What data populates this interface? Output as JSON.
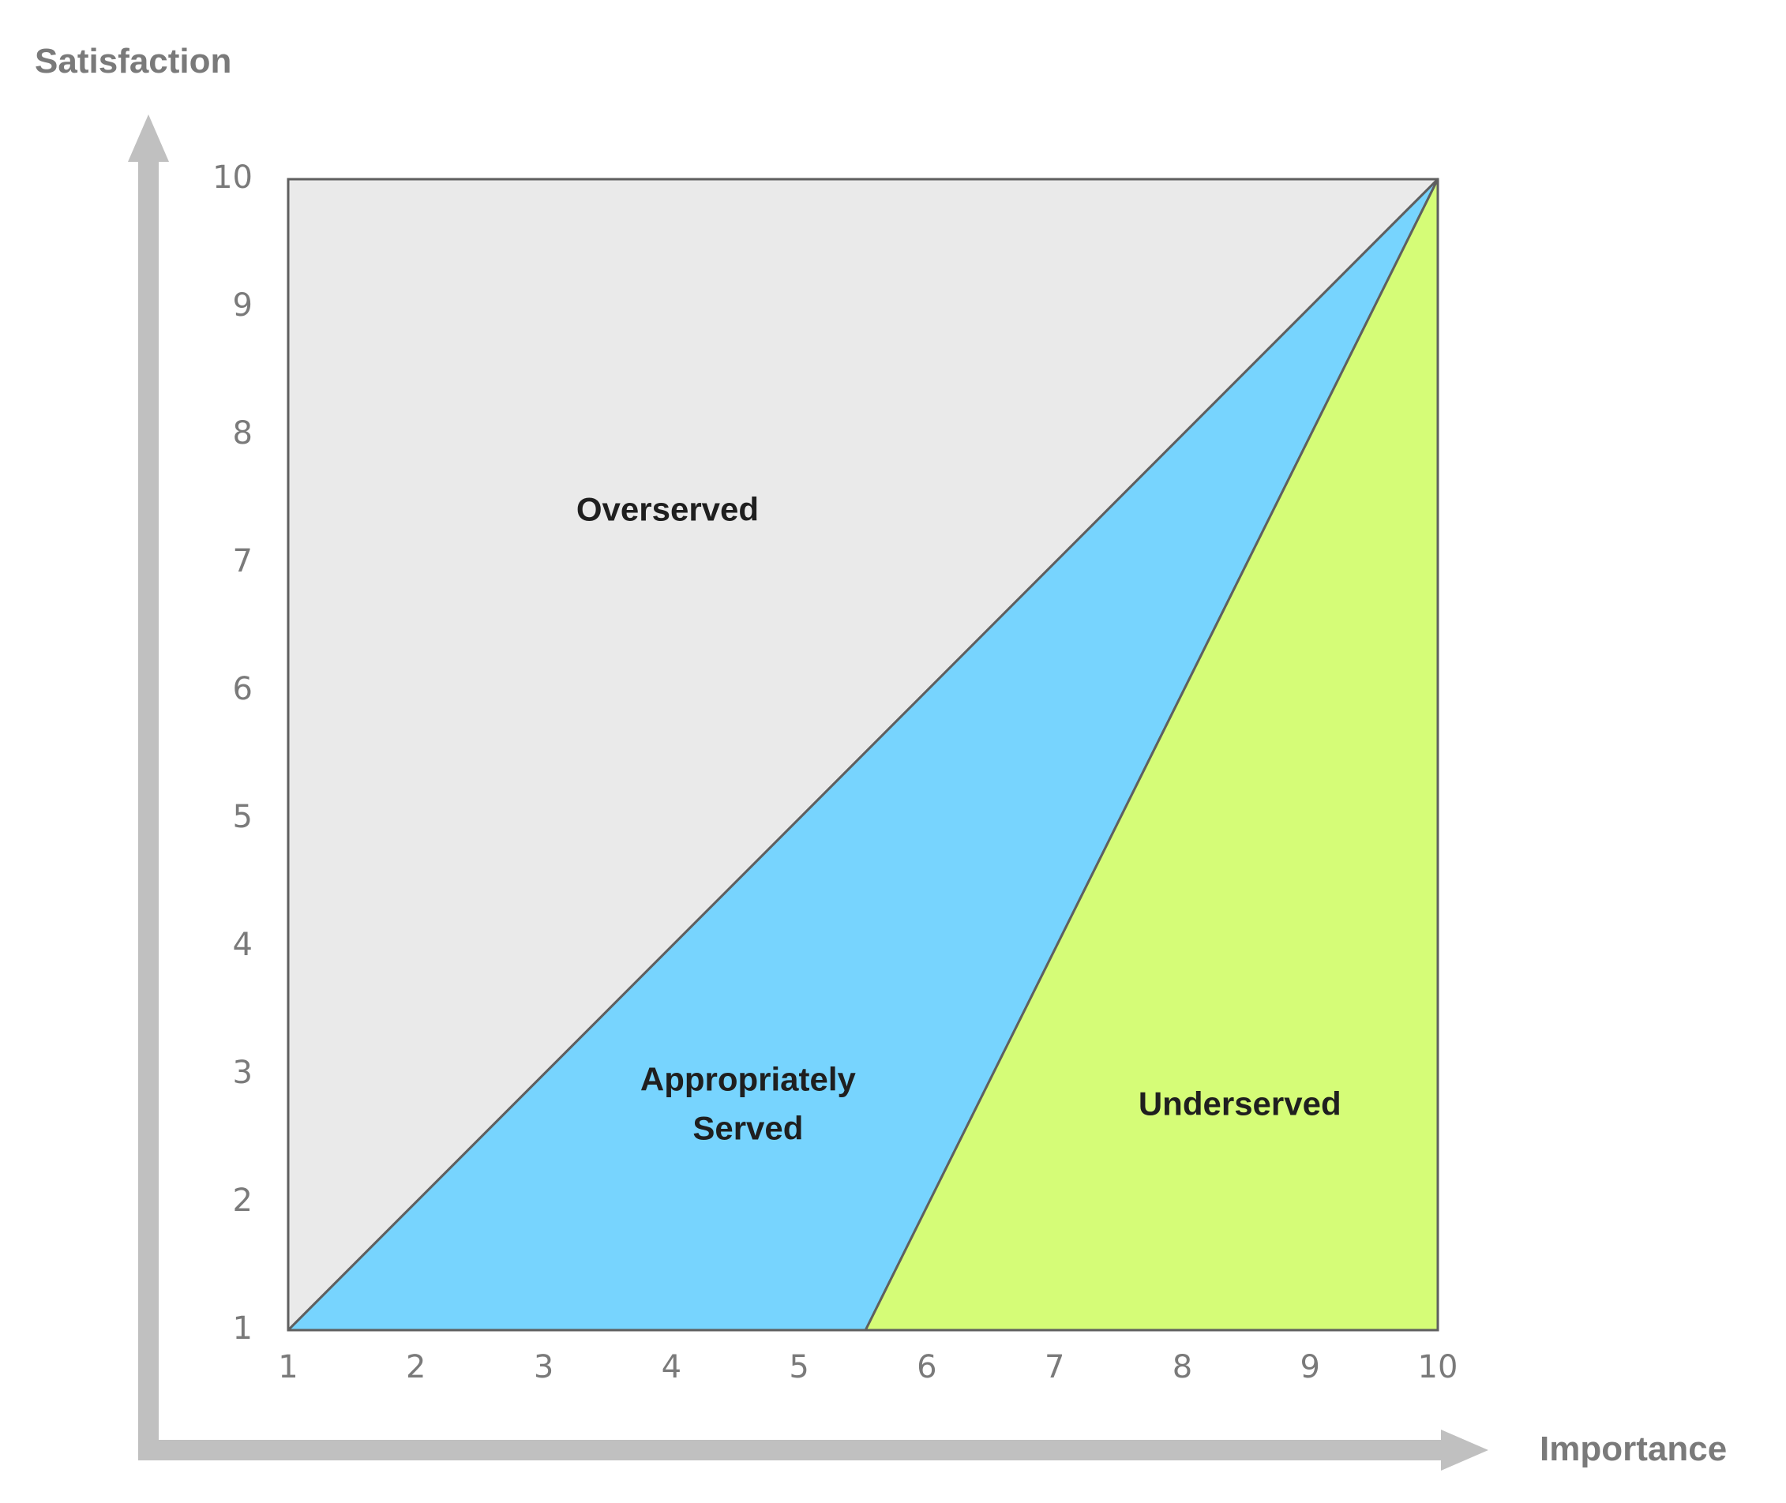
{
  "chart_data": {
    "type": "area",
    "xlabel": "Importance",
    "ylabel": "Satisfaction",
    "xlim": [
      1,
      10
    ],
    "ylim": [
      1,
      10
    ],
    "x_ticks": [
      "1",
      "2",
      "3",
      "4",
      "5",
      "6",
      "7",
      "8",
      "9",
      "10"
    ],
    "y_ticks": [
      "1",
      "2",
      "3",
      "4",
      "5",
      "6",
      "7",
      "8",
      "9",
      "10"
    ],
    "grid": false,
    "legend": "none",
    "regions": [
      {
        "name": "Overserved",
        "label_lines": [
          "Overserved"
        ],
        "color": "#EAEAEA",
        "polygon": [
          [
            1,
            1
          ],
          [
            1,
            10
          ],
          [
            10,
            10
          ]
        ],
        "label_at": [
          3.97,
          7.4
        ]
      },
      {
        "name": "Appropriately Served",
        "label_lines": [
          "Appropriately",
          "Served"
        ],
        "color": "#77D4FE",
        "polygon": [
          [
            1,
            1
          ],
          [
            10,
            10
          ],
          [
            5.52,
            1
          ]
        ],
        "label_at": [
          4.6,
          2.75
        ]
      },
      {
        "name": "Underserved",
        "label_lines": [
          "Underserved"
        ],
        "color": "#D5FC77",
        "polygon": [
          [
            5.52,
            1
          ],
          [
            10,
            10
          ],
          [
            10,
            1
          ]
        ],
        "label_at": [
          8.45,
          2.75
        ]
      }
    ]
  },
  "colors": {
    "axis_arrow": "#C0C0C0",
    "border": "#5F5F5F",
    "text": "#7A7A7A",
    "label": "#1F1F1F"
  }
}
